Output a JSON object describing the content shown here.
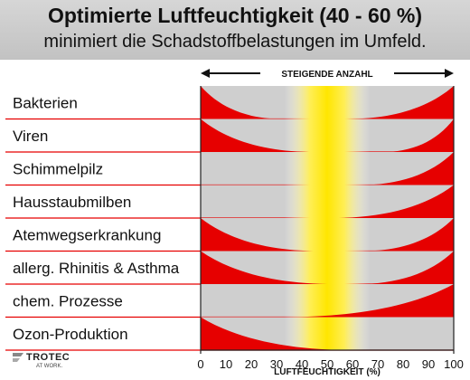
{
  "header": {
    "title": "Optimierte Luftfeuchtigkeit (40 - 60 %)",
    "subtitle": "minimiert die Schadstoffbelastungen im Umfeld."
  },
  "chart_data": {
    "type": "area",
    "top_label": "STEIGENDE ANZAHL",
    "xlabel": "LUFTFEUCHTIGKEIT (%)",
    "xlim": [
      0,
      100
    ],
    "x_ticks": [
      0,
      10,
      20,
      30,
      40,
      50,
      60,
      70,
      80,
      90,
      100
    ],
    "x_tick_labels": [
      "0",
      "10",
      "20",
      "30",
      "40",
      "50",
      "60",
      "70",
      "80",
      "90",
      "100"
    ],
    "optimal_range": [
      40,
      60
    ],
    "grid": false,
    "colors": {
      "risk": "#e60000",
      "band": "#cfcfcf",
      "optimal": "#ffe600",
      "separator": "#e60000"
    },
    "series": [
      {
        "name": "Bakterien",
        "low_end": 32,
        "high_start": 58
      },
      {
        "name": "Viren",
        "low_end": 45,
        "high_start": 72
      },
      {
        "name": "Schimmelpilz",
        "low_end": 0,
        "high_start": 63
      },
      {
        "name": "Hausstaubmilben",
        "low_end": 0,
        "high_start": 52
      },
      {
        "name": "Atemwegserkrankung",
        "low_end": 47,
        "high_start": 64
      },
      {
        "name": "allerg. Rhinitis & Asthma",
        "low_end": 53,
        "high_start": 62
      },
      {
        "name": "chem. Prozesse",
        "low_end": 0,
        "high_start": 33
      },
      {
        "name": "Ozon-Produktion",
        "low_end": 60,
        "high_start": 100
      }
    ]
  },
  "logo": {
    "name": "TROTEC",
    "tagline": "AT WORK."
  }
}
